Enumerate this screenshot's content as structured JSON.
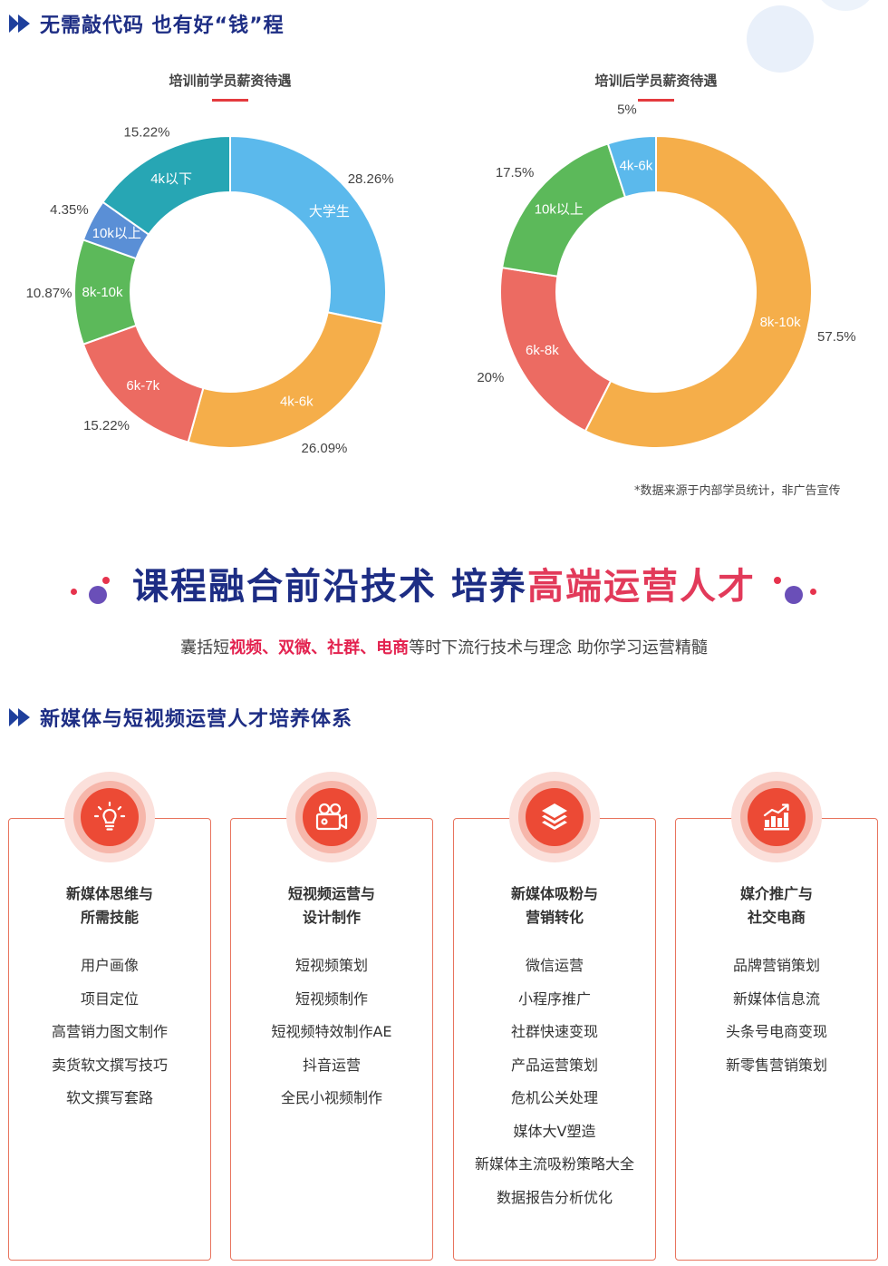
{
  "sections": {
    "salary_heading": "无需敲代码 也有好“钱”程",
    "system_heading": "新媒体与短视频运营人才培养体系"
  },
  "source_note": "*数据来源于内部学员统计，非广告宣传",
  "banner": {
    "blue_text": "课程融合前沿技术 培养",
    "red_text": "高端运营人才",
    "sub_prefix": "囊括短",
    "sub_highlight": "视频、双微、社群、电商",
    "sub_suffix": "等时下流行技术与理念 助你学习运营精髓"
  },
  "chart_data": [
    {
      "type": "pie",
      "title": "培训前学员薪资待遇",
      "donut": true,
      "start_angle_deg": 0,
      "slices": [
        {
          "label": "大学生",
          "value": 28.26,
          "value_label": "28.26%",
          "color": "#5bb9ec"
        },
        {
          "label": "4k-6k",
          "value": 26.09,
          "value_label": "26.09%",
          "color": "#f5ae4a"
        },
        {
          "label": "6k-7k",
          "value": 15.22,
          "value_label": "15.22%",
          "color": "#ec6b62"
        },
        {
          "label": "8k-10k",
          "value": 10.87,
          "value_label": "10.87%",
          "color": "#5cb95a"
        },
        {
          "label": "10k以上",
          "value": 4.35,
          "value_label": "4.35%",
          "color": "#5a8fd6"
        },
        {
          "label": "4k以下",
          "value": 15.22,
          "value_label": "15.22%",
          "color": "#27a6b4"
        }
      ]
    },
    {
      "type": "pie",
      "title": "培训后学员薪资待遇",
      "donut": true,
      "start_angle_deg": 0,
      "slices": [
        {
          "label": "8k-10k",
          "value": 57.5,
          "value_label": "57.5%",
          "color": "#f5ae4a"
        },
        {
          "label": "6k-8k",
          "value": 20,
          "value_label": "20%",
          "color": "#ec6b62"
        },
        {
          "label": "10k以上",
          "value": 17.5,
          "value_label": "17.5%",
          "color": "#5cb95a"
        },
        {
          "label": "4k-6k",
          "value": 5,
          "value_label": "5%",
          "color": "#5bb9ec"
        }
      ]
    }
  ],
  "cards": [
    {
      "icon": "lightbulb-icon",
      "title_lines": [
        "新媒体思维与",
        "所需技能"
      ],
      "items": [
        "用户画像",
        "项目定位",
        "高营销力图文制作",
        "卖货软文撰写技巧",
        "软文撰写套路"
      ]
    },
    {
      "icon": "video-camera-icon",
      "title_lines": [
        "短视频运营与",
        "设计制作"
      ],
      "items": [
        "短视频策划",
        "短视频制作",
        "短视频特效制作AE",
        "抖音运营",
        "全民小视频制作"
      ]
    },
    {
      "icon": "layers-icon",
      "title_lines": [
        "新媒体吸粉与",
        "营销转化"
      ],
      "items": [
        "微信运营",
        "小程序推广",
        "社群快速变现",
        "产品运营策划",
        "危机公关处理",
        "媒体大V塑造",
        "新媒体主流吸粉策略大全",
        "数据报告分析优化"
      ]
    },
    {
      "icon": "growth-chart-icon",
      "title_lines": [
        "媒介推广与",
        "社交电商"
      ],
      "items": [
        "品牌营销策划",
        "新媒体信息流",
        "头条号电商变现",
        "新零售营销策划"
      ]
    }
  ]
}
